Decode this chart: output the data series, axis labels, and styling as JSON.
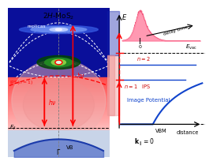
{
  "title": "2H-MoS₂",
  "replicas_label": "replicas",
  "ips_n1_label": "IPS(n = 1)",
  "ef_label": "E_f",
  "vb_label": "VB",
  "gamma_label": "Γ",
  "hv_label": "hν",
  "evac_label": "E_vac",
  "vbm_label": "VBM",
  "n1_label": "n = 1",
  "n2_label": "n = 2",
  "ips_label": "IPS",
  "img_pot_label": "Image Potential",
  "distance_label": "distance",
  "delay_label": "delay time",
  "zero_label": "0",
  "kpar_label": "k_∥=0",
  "E_label": "E",
  "blue_bg": "#0a0f9a",
  "pink_bg": "#f8d0d0",
  "gray_bg": "#c8d4e8",
  "white_bg": "#ffffff"
}
